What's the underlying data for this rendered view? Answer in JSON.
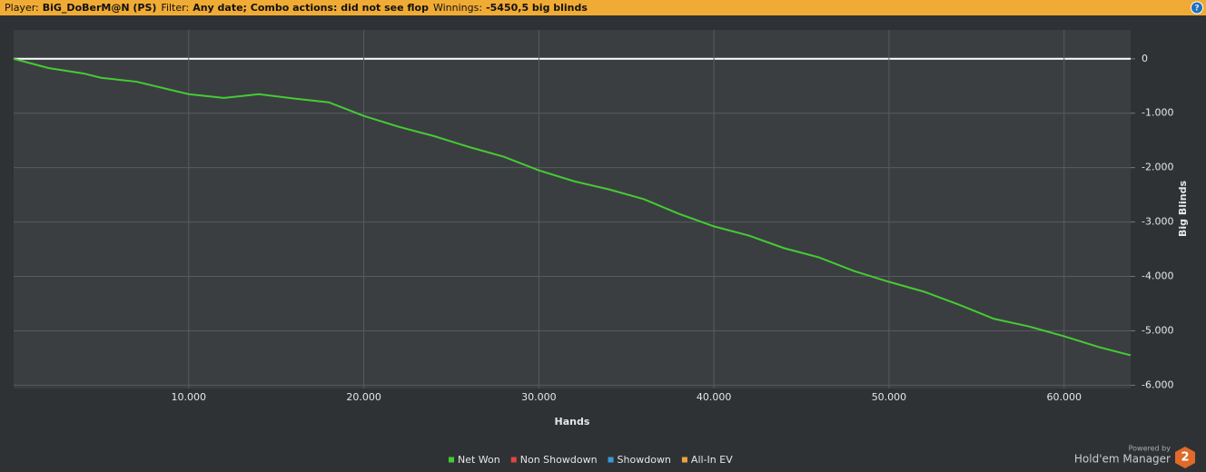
{
  "header": {
    "player_label": "Player:",
    "player": "BiG_DoBerM@N (PS)",
    "filter_label": "Filter:",
    "filter": "Any date; Combo actions: did not see flop",
    "winnings_label": "Winnings:",
    "winnings": "-5450,5 big blinds"
  },
  "branding": {
    "powered_by": "Powered by",
    "product": "Hold'em Manager",
    "logo": "2"
  },
  "chart_data": {
    "type": "line",
    "x_label": "Hands",
    "y_label": "Big Blinds",
    "grid": true,
    "x": [
      0,
      2000,
      4000,
      5000,
      7000,
      10000,
      12000,
      14000,
      16000,
      18000,
      20000,
      22000,
      24000,
      26000,
      28000,
      30000,
      32000,
      34000,
      36000,
      38000,
      40000,
      42000,
      44000,
      46000,
      48000,
      50000,
      52000,
      54000,
      56000,
      58000,
      60000,
      62000,
      63800
    ],
    "series": [
      {
        "name": "Net Won",
        "color": "#44cc33",
        "values": [
          0,
          -170,
          -270,
          -350,
          -420,
          -650,
          -720,
          -650,
          -730,
          -800,
          -1050,
          -1250,
          -1420,
          -1620,
          -1800,
          -2050,
          -2250,
          -2400,
          -2580,
          -2850,
          -3080,
          -3250,
          -3480,
          -3650,
          -3900,
          -4100,
          -4280,
          -4520,
          -4780,
          -4920,
          -5100,
          -5300,
          -5450
        ]
      },
      {
        "name": "Non Showdown",
        "color": "#e04444"
      },
      {
        "name": "Showdown",
        "color": "#3a9ad9"
      },
      {
        "name": "All-In EV",
        "color": "#f0a040"
      }
    ],
    "xlim": [
      0,
      63800
    ],
    "xticks": [
      {
        "value": 10000,
        "label": "10.000"
      },
      {
        "value": 20000,
        "label": "20.000"
      },
      {
        "value": 30000,
        "label": "30.000"
      },
      {
        "value": 40000,
        "label": "40.000"
      },
      {
        "value": 50000,
        "label": "50.000"
      },
      {
        "value": 60000,
        "label": "60.000"
      }
    ],
    "ylim": [
      -6060,
      530
    ],
    "yticks": [
      0,
      {
        "value": -1000,
        "label": "-1.000"
      },
      {
        "value": -2000,
        "label": "-2.000"
      },
      {
        "value": -3000,
        "label": "-3.000"
      },
      {
        "value": -4000,
        "label": "-4.000"
      },
      {
        "value": -5000,
        "label": "-5.000"
      },
      {
        "value": -6000,
        "label": "-6.000"
      }
    ]
  }
}
